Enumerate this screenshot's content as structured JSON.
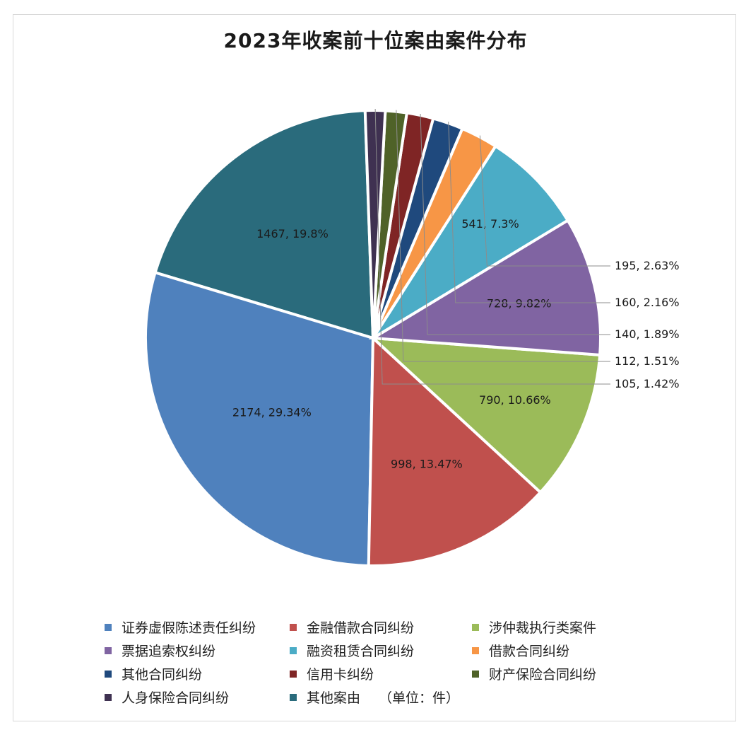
{
  "chart_data": {
    "type": "pie",
    "title": "2023年收案前十位案由案件分布",
    "unit_note": "（单位：件）",
    "slices": [
      {
        "name": "其他案由",
        "value": 1467,
        "percent": "19.8%",
        "label": "1467, 19.8%",
        "color": "#2a6b7c"
      },
      {
        "name": "证券虚假陈述责任纠纷",
        "value": 2174,
        "percent": "29.34%",
        "label": "2174, 29.34%",
        "color": "#4f81bd"
      },
      {
        "name": "金融借款合同纠纷",
        "value": 998,
        "percent": "13.47%",
        "label": "998, 13.47%",
        "color": "#c0504d"
      },
      {
        "name": "涉仲裁执行类案件",
        "value": 790,
        "percent": "10.66%",
        "label": "790, 10.66%",
        "color": "#9bbb59"
      },
      {
        "name": "票据追索权纠纷",
        "value": 728,
        "percent": "9.82%",
        "label": "728, 9.82%",
        "color": "#8064a2"
      },
      {
        "name": "融资租赁合同纠纷",
        "value": 541,
        "percent": "7.3%",
        "label": "541, 7.3%",
        "color": "#4bacc6"
      },
      {
        "name": "借款合同纠纷",
        "value": 195,
        "percent": "2.63%",
        "label": "195, 2.63%",
        "color": "#f79646"
      },
      {
        "name": "其他合同纠纷",
        "value": 160,
        "percent": "2.16%",
        "label": "160, 2.16%",
        "color": "#1f497d"
      },
      {
        "name": "信用卡纠纷",
        "value": 140,
        "percent": "1.89%",
        "label": "140, 1.89%",
        "color": "#7f2525"
      },
      {
        "name": "财产保险合同纠纷",
        "value": 112,
        "percent": "1.51%",
        "label": "112, 1.51%",
        "color": "#4f6228"
      },
      {
        "name": "人身保险合同纠纷",
        "value": 105,
        "percent": "1.42%",
        "label": "105, 1.42%",
        "color": "#3f3151"
      }
    ],
    "legend_order": [
      "证券虚假陈述责任纠纷",
      "金融借款合同纠纷",
      "涉仲裁执行类案件",
      "票据追索权纠纷",
      "融资租赁合同纠纷",
      "借款合同纠纷",
      "其他合同纠纷",
      "信用卡纠纷",
      "财产保险合同纠纷",
      "人身保险合同纠纷",
      "其他案由"
    ],
    "legend_position": "bottom"
  }
}
